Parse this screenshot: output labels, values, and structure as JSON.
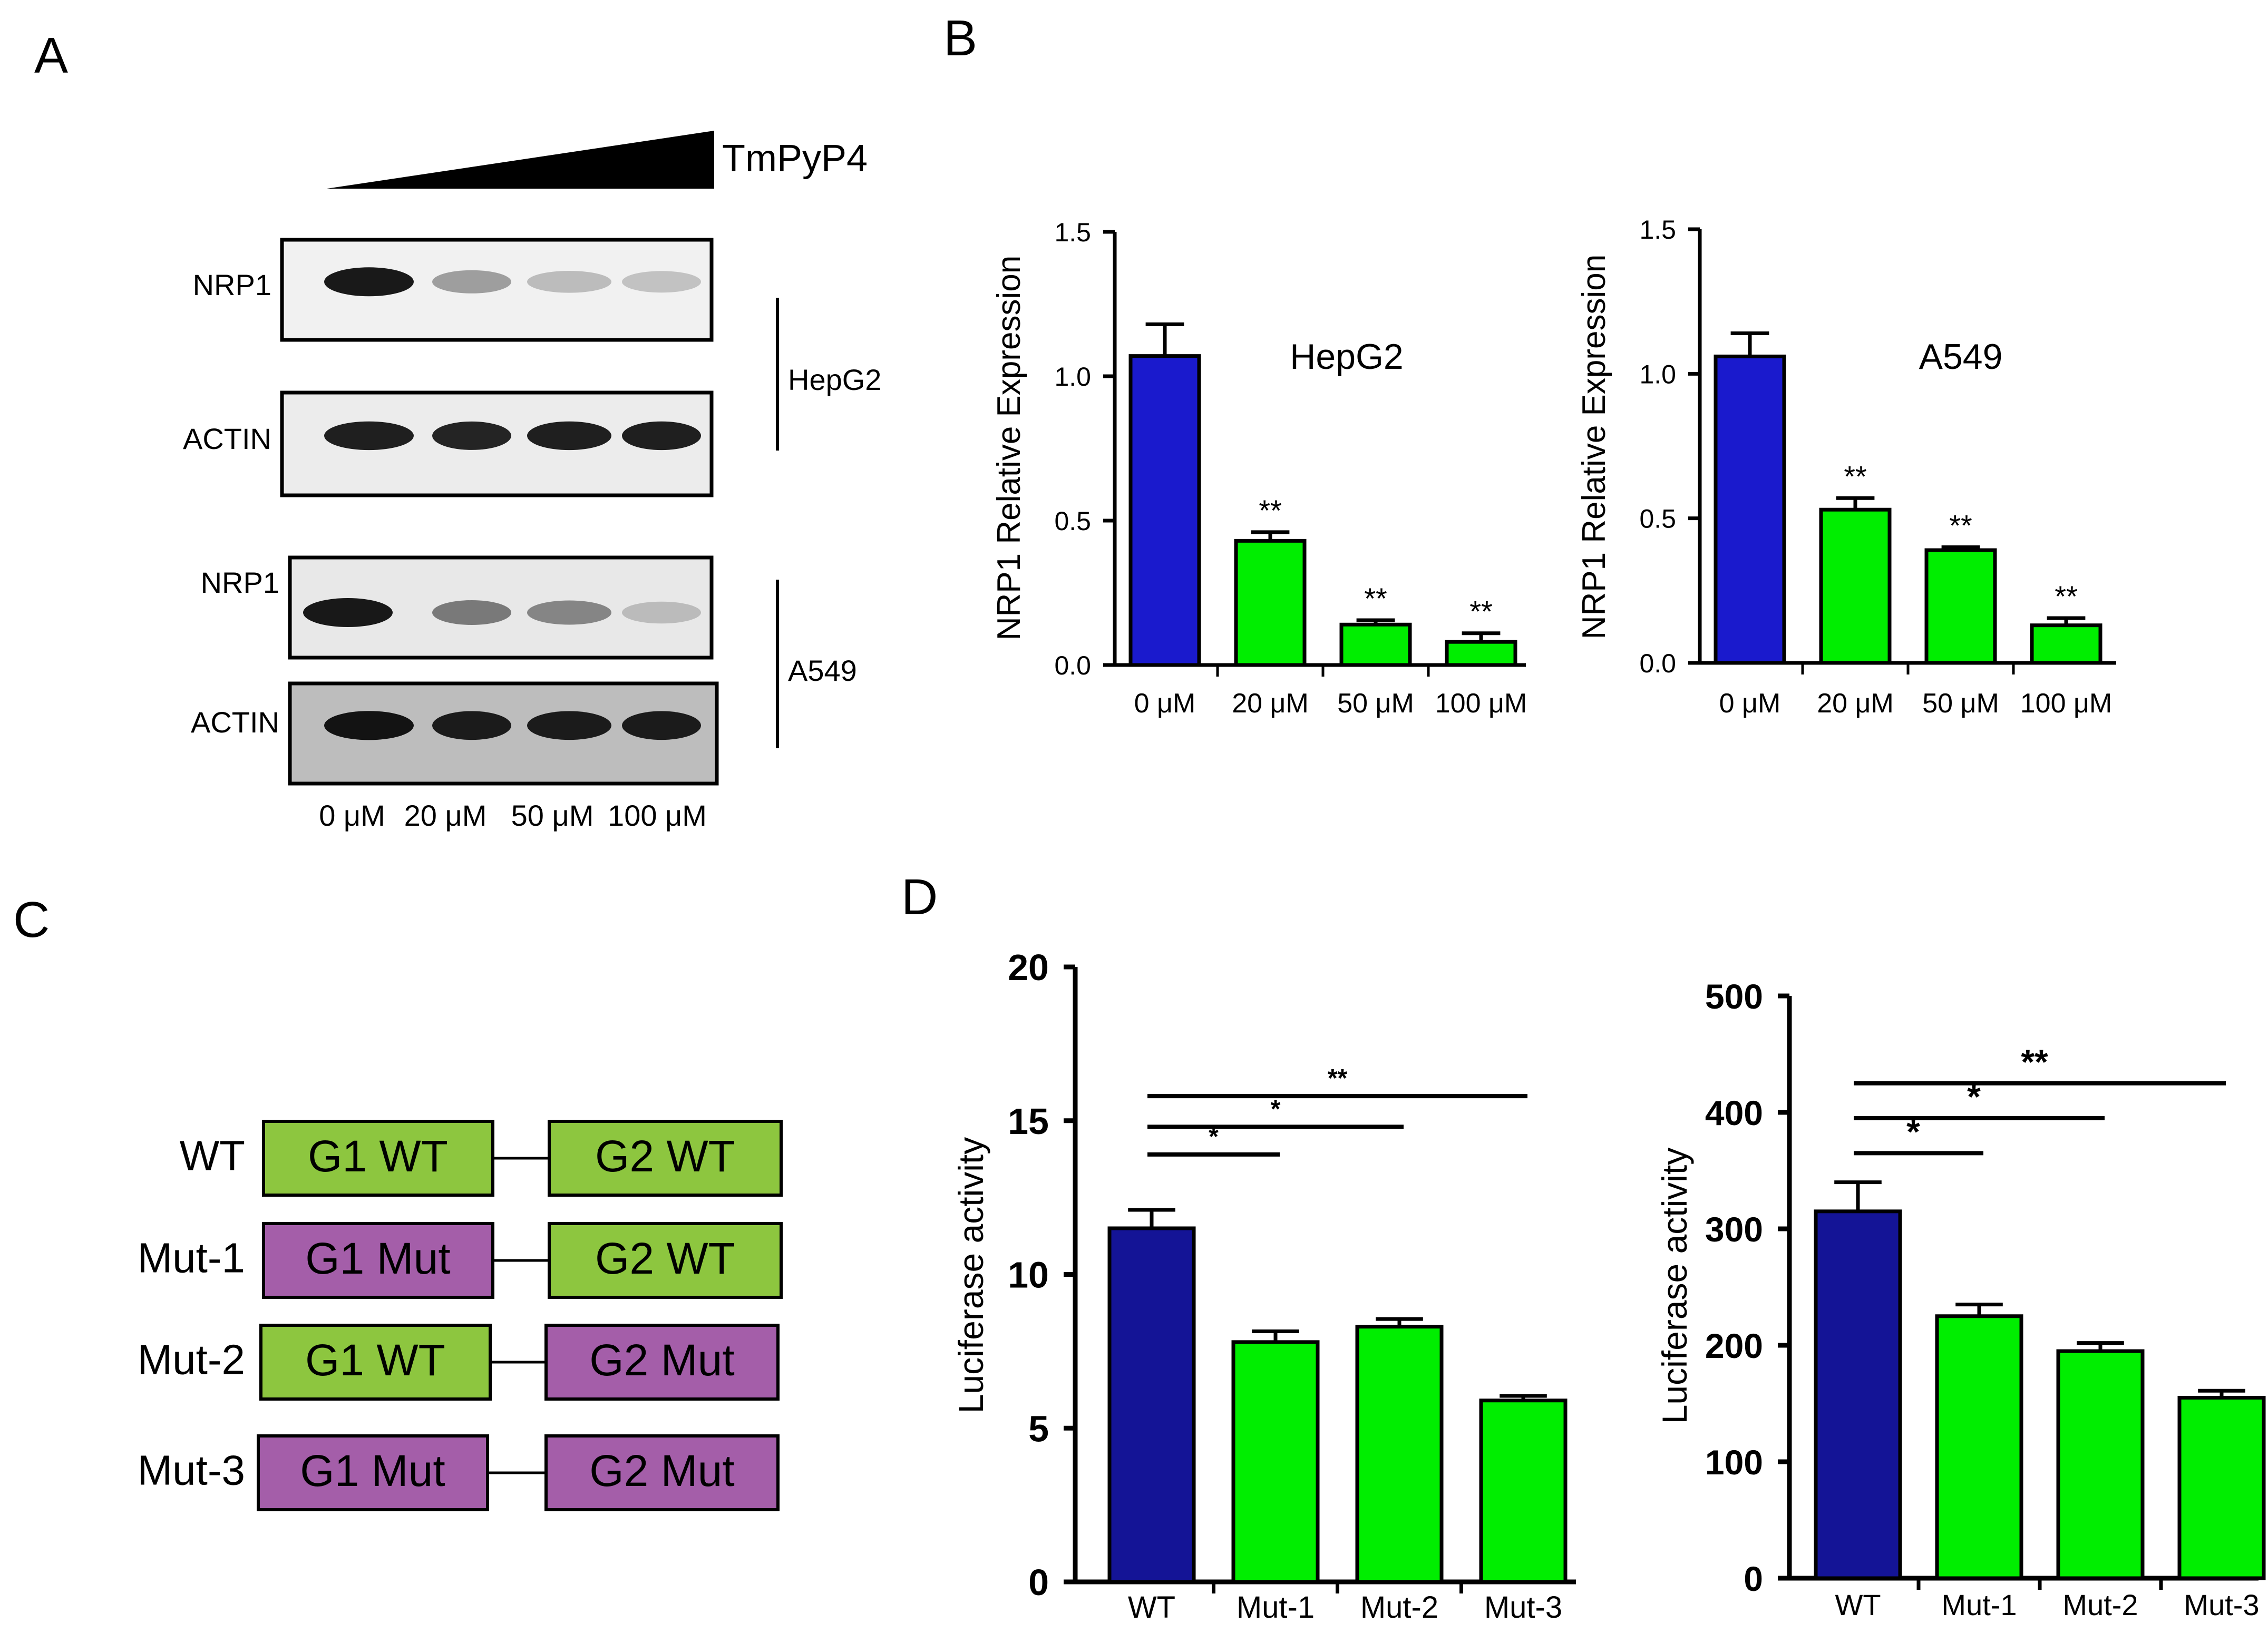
{
  "panels": {
    "a": {
      "label": "A",
      "treatment": "TmPyP4",
      "doses": [
        "0 μM",
        "20 μM",
        "50 μM",
        "100 μM"
      ],
      "blots": [
        {
          "protein": "NRP1",
          "cell_line": "HepG2",
          "intensity": [
            0.95,
            0.4,
            0.28,
            0.25
          ],
          "background": "#f1f1f1"
        },
        {
          "protein": "ACTIN",
          "cell_line": "HepG2",
          "intensity": [
            0.92,
            0.9,
            0.92,
            0.92
          ],
          "background": "#ececec"
        },
        {
          "protein": "NRP1",
          "cell_line": "A549",
          "intensity": [
            0.95,
            0.55,
            0.5,
            0.28
          ],
          "background": "#e8e8e8"
        },
        {
          "protein": "ACTIN",
          "cell_line": "A549",
          "intensity": [
            0.96,
            0.93,
            0.93,
            0.93
          ],
          "background": "#bdbdbd"
        }
      ],
      "cell_lines": [
        "HepG2",
        "A549"
      ]
    },
    "b": {
      "label": "B"
    },
    "c": {
      "label": "C",
      "constructs": [
        {
          "name": "WT",
          "g1": "G1 WT",
          "g2": "G2 WT",
          "g1_color": "#8dc63f",
          "g2_color": "#8dc63f"
        },
        {
          "name": "Mut-1",
          "g1": "G1 Mut",
          "g2": "G2 WT",
          "g1_color": "#a45ea9",
          "g2_color": "#8dc63f"
        },
        {
          "name": "Mut-2",
          "g1": "G1 WT",
          "g2": "G2 Mut",
          "g1_color": "#8dc63f",
          "g2_color": "#a45ea9"
        },
        {
          "name": "Mut-3",
          "g1": "G1 Mut",
          "g2": "G2 Mut",
          "g1_color": "#a45ea9",
          "g2_color": "#a45ea9"
        }
      ]
    },
    "d": {
      "label": "D"
    }
  },
  "colors": {
    "control": "#1a1acd",
    "treated": "#00ee00",
    "control_dark": "#141496"
  },
  "chart_data": [
    {
      "id": "b-hepg2",
      "type": "bar",
      "title": "HepG2",
      "ylabel": "NRP1 Relative Expression",
      "xlabel": "",
      "categories": [
        "0 μM",
        "20 μM",
        "50 μM",
        "100 μM"
      ],
      "values": [
        1.07,
        0.43,
        0.14,
        0.08
      ],
      "errors": [
        0.11,
        0.03,
        0.015,
        0.03
      ],
      "ylim": [
        0,
        1.5
      ],
      "yticks": [
        "0.0",
        "0.5",
        "1.0",
        "1.5"
      ],
      "ytick_values": [
        0,
        0.5,
        1.0,
        1.5
      ],
      "significance": [
        "",
        "**",
        "**",
        "**"
      ],
      "bar_colors": [
        "control",
        "treated",
        "treated",
        "treated"
      ]
    },
    {
      "id": "b-a549",
      "type": "bar",
      "title": "A549",
      "ylabel": "NRP1 Relative Expression",
      "xlabel": "",
      "categories": [
        "0 μM",
        "20 μM",
        "50 μM",
        "100 μM"
      ],
      "values": [
        1.06,
        0.53,
        0.39,
        0.13
      ],
      "errors": [
        0.08,
        0.04,
        0.01,
        0.025
      ],
      "ylim": [
        0,
        1.5
      ],
      "yticks": [
        "0.0",
        "0.5",
        "1.0",
        "1.5"
      ],
      "ytick_values": [
        0,
        0.5,
        1.0,
        1.5
      ],
      "significance": [
        "",
        "**",
        "**",
        "**"
      ],
      "bar_colors": [
        "control",
        "treated",
        "treated",
        "treated"
      ]
    },
    {
      "id": "d-left",
      "type": "bar",
      "title": "",
      "ylabel": "Luciferase activity",
      "xlabel": "",
      "categories": [
        "WT",
        "Mut-1",
        "Mut-2",
        "Mut-3"
      ],
      "values": [
        11.5,
        7.8,
        8.3,
        5.9
      ],
      "errors": [
        0.6,
        0.35,
        0.25,
        0.15
      ],
      "ylim": [
        0,
        20
      ],
      "yticks": [
        "0",
        "5",
        "10",
        "15",
        "20"
      ],
      "ytick_values": [
        0,
        5,
        10,
        15,
        20
      ],
      "comparisons": [
        {
          "from": "WT",
          "to": "Mut-1",
          "label": "*",
          "y": 13.9
        },
        {
          "from": "WT",
          "to": "Mut-2",
          "label": "*",
          "y": 14.8
        },
        {
          "from": "WT",
          "to": "Mut-3",
          "label": "**",
          "y": 15.8
        }
      ],
      "bar_colors": [
        "control_dark",
        "treated",
        "treated",
        "treated"
      ]
    },
    {
      "id": "d-right",
      "type": "bar",
      "title": "",
      "ylabel": "Luciferase activity",
      "xlabel": "",
      "categories": [
        "WT",
        "Mut-1",
        "Mut-2",
        "Mut-3"
      ],
      "values": [
        315,
        225,
        195,
        155
      ],
      "errors": [
        25,
        10,
        7,
        6
      ],
      "ylim": [
        0,
        500
      ],
      "yticks": [
        "0",
        "100",
        "200",
        "300",
        "400",
        "500"
      ],
      "ytick_values": [
        0,
        100,
        200,
        300,
        400,
        500
      ],
      "comparisons": [
        {
          "from": "WT",
          "to": "Mut-1",
          "label": "*",
          "y": 365
        },
        {
          "from": "WT",
          "to": "Mut-2",
          "label": "*",
          "y": 395
        },
        {
          "from": "WT",
          "to": "Mut-3",
          "label": "**",
          "y": 425
        }
      ],
      "bar_colors": [
        "control_dark",
        "treated",
        "treated",
        "treated"
      ]
    }
  ]
}
